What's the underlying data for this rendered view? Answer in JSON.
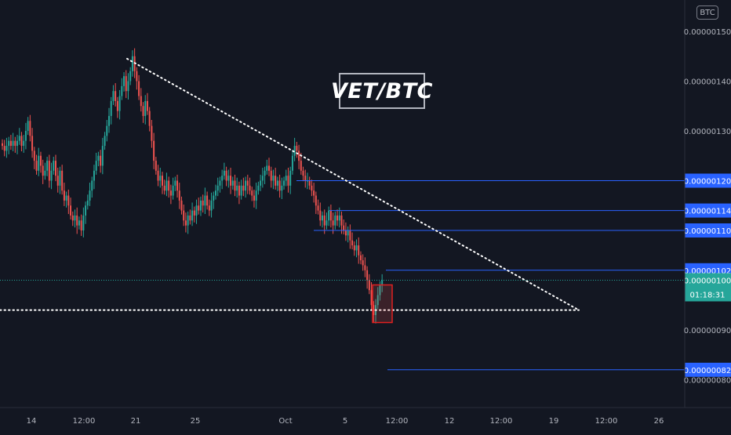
{
  "chart_data": {
    "type": "candlestick",
    "title": "VET/BTC",
    "currency": "BTC",
    "ylim": [
      7.6e-07,
      1.57e-06
    ],
    "y_ticks": [
      "0.00000150",
      "0.00000140",
      "0.00000130",
      "0.00000090",
      "0.00000080"
    ],
    "x_ticks": [
      "14",
      "12:00",
      "21",
      "25",
      "Oct",
      "5",
      "12:00",
      "12",
      "12:00",
      "19",
      "12:00",
      "26"
    ],
    "horizontal_levels": [
      {
        "label": "0.00000120",
        "value": 1.2e-06
      },
      {
        "label": "0.00000114",
        "value": 1.14e-06
      },
      {
        "label": "0.00000110",
        "value": 1.1e-06
      },
      {
        "label": "0.00000102",
        "value": 1.02e-06
      },
      {
        "label": "0.00000082",
        "value": 8.2e-07
      }
    ],
    "last_price": {
      "label": "0.00000100",
      "value": 1e-06,
      "countdown": "01:18:31",
      "color": "#26a69a"
    },
    "trendlines": [
      {
        "name": "descending-resistance",
        "from": {
          "x": 0.0,
          "y": 1.45e-06
        },
        "to": {
          "x": 0.0,
          "y": 9.4e-07
        }
      },
      {
        "name": "horizontal-support",
        "value": 9.4e-07
      }
    ],
    "colors": {
      "up": "#26a69a",
      "down": "#ef5350",
      "level": "#2962ff",
      "background": "#131722",
      "text": "#b2b5be"
    },
    "closes": [
      1.27,
      1.26,
      1.27,
      1.28,
      1.27,
      1.28,
      1.27,
      1.28,
      1.29,
      1.27,
      1.28,
      1.3,
      1.32,
      1.29,
      1.26,
      1.24,
      1.22,
      1.25,
      1.23,
      1.21,
      1.22,
      1.24,
      1.2,
      1.22,
      1.24,
      1.21,
      1.19,
      1.22,
      1.18,
      1.16,
      1.17,
      1.15,
      1.13,
      1.12,
      1.13,
      1.11,
      1.12,
      1.1,
      1.13,
      1.15,
      1.16,
      1.18,
      1.2,
      1.22,
      1.24,
      1.25,
      1.23,
      1.27,
      1.29,
      1.31,
      1.33,
      1.36,
      1.38,
      1.36,
      1.34,
      1.37,
      1.39,
      1.41,
      1.38,
      1.4,
      1.42,
      1.45,
      1.42,
      1.4,
      1.37,
      1.35,
      1.33,
      1.36,
      1.34,
      1.31,
      1.28,
      1.24,
      1.22,
      1.2,
      1.21,
      1.19,
      1.18,
      1.2,
      1.18,
      1.17,
      1.19,
      1.2,
      1.18,
      1.16,
      1.14,
      1.12,
      1.11,
      1.13,
      1.12,
      1.14,
      1.13,
      1.15,
      1.14,
      1.16,
      1.15,
      1.17,
      1.15,
      1.14,
      1.16,
      1.17,
      1.18,
      1.19,
      1.2,
      1.21,
      1.22,
      1.2,
      1.21,
      1.19,
      1.2,
      1.18,
      1.19,
      1.17,
      1.19,
      1.18,
      1.2,
      1.19,
      1.18,
      1.17,
      1.16,
      1.18,
      1.19,
      1.2,
      1.21,
      1.22,
      1.23,
      1.22,
      1.2,
      1.21,
      1.19,
      1.2,
      1.18,
      1.19,
      1.2,
      1.21,
      1.19,
      1.22,
      1.25,
      1.27,
      1.26,
      1.24,
      1.22,
      1.21,
      1.2,
      1.2,
      1.19,
      1.18,
      1.17,
      1.15,
      1.14,
      1.12,
      1.13,
      1.11,
      1.12,
      1.14,
      1.12,
      1.11,
      1.13,
      1.12,
      1.13,
      1.11,
      1.1,
      1.09,
      1.1,
      1.08,
      1.07,
      1.06,
      1.07,
      1.05,
      1.04,
      1.03,
      1.02,
      1.0,
      0.98,
      0.95,
      0.93,
      0.95,
      0.97,
      0.99,
      1.0
    ]
  }
}
